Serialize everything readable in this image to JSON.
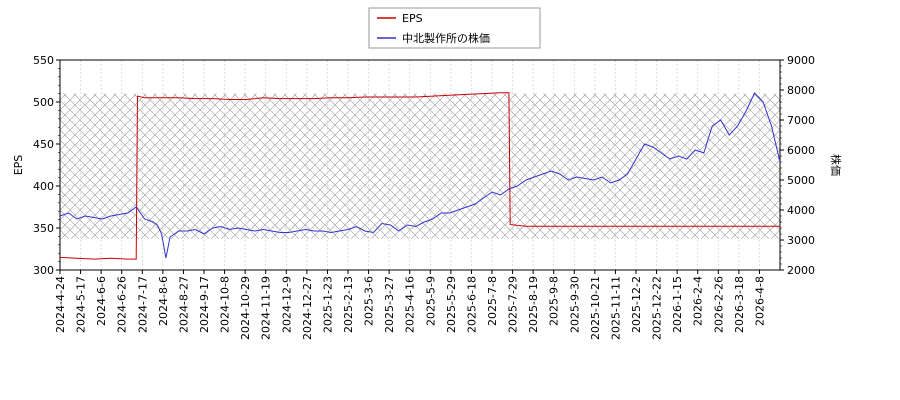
{
  "chart_data": {
    "type": "line",
    "legend": {
      "placement": "top-center",
      "entries": [
        {
          "name": "EPS",
          "color": "#cc0000"
        },
        {
          "name": "中北製作所の株価",
          "color": "#3333cc"
        }
      ]
    },
    "x_ticks": [
      "2024-4-24",
      "2024-5-17",
      "2024-6-6",
      "2024-6-26",
      "2024-7-17",
      "2024-8-6",
      "2024-8-27",
      "2024-9-17",
      "2024-10-8",
      "2024-10-29",
      "2024-11-19",
      "2024-12-9",
      "2024-12-27",
      "2025-1-23",
      "2025-2-13",
      "2025-3-6",
      "2025-3-27",
      "2025-4-16",
      "2025-5-9",
      "2025-5-29",
      "2025-6-18",
      "2025-7-8",
      "2025-7-29",
      "2025-8-19",
      "2025-9-8",
      "2025-9-30",
      "2025-10-21",
      "2025-11-11",
      "2025-12-2",
      "2025-12-22",
      "2026-1-15",
      "2026-2-4",
      "2026-2-26",
      "2026-3-18",
      "2026-4-8"
    ],
    "y_left": {
      "label": "EPS",
      "range": [
        300,
        550
      ],
      "ticks": [
        300,
        350,
        400,
        450,
        500,
        550
      ]
    },
    "y_right": {
      "label": "株価",
      "range": [
        2000,
        9000
      ],
      "ticks": [
        2000,
        3000,
        4000,
        5000,
        6000,
        7000,
        8000,
        9000
      ]
    },
    "series": [
      {
        "name": "EPS",
        "axis": "left",
        "color": "#cc0000",
        "points": [
          [
            0,
            315
          ],
          [
            4,
            314
          ],
          [
            8,
            313
          ],
          [
            12,
            314
          ],
          [
            16,
            313
          ],
          [
            18,
            313
          ],
          [
            18.3,
            507
          ],
          [
            20,
            505
          ],
          [
            24,
            505
          ],
          [
            28,
            505
          ],
          [
            32,
            504
          ],
          [
            36,
            504
          ],
          [
            40,
            503
          ],
          [
            44,
            503
          ],
          [
            48,
            505
          ],
          [
            52,
            504
          ],
          [
            56,
            504
          ],
          [
            60,
            504
          ],
          [
            64,
            505
          ],
          [
            68,
            505
          ],
          [
            72,
            506
          ],
          [
            76,
            506
          ],
          [
            80,
            506
          ],
          [
            84,
            506
          ],
          [
            88,
            507
          ],
          [
            92,
            508
          ],
          [
            96,
            509
          ],
          [
            100,
            510
          ],
          [
            104,
            511
          ],
          [
            106,
            511
          ],
          [
            106.3,
            354
          ],
          [
            110,
            352
          ],
          [
            114,
            352
          ],
          [
            118,
            352
          ],
          [
            122,
            352
          ],
          [
            126,
            352
          ],
          [
            130,
            352
          ],
          [
            134,
            352
          ],
          [
            138,
            352
          ],
          [
            142,
            352
          ],
          [
            146,
            352
          ],
          [
            150,
            352
          ],
          [
            154,
            352
          ],
          [
            158,
            352
          ],
          [
            162,
            352
          ],
          [
            166,
            352
          ],
          [
            170,
            352
          ]
        ]
      },
      {
        "name": "中北製作所の株価",
        "axis": "right",
        "color": "#3333cc",
        "points": [
          [
            0,
            3800
          ],
          [
            2,
            3900
          ],
          [
            4,
            3700
          ],
          [
            6,
            3800
          ],
          [
            8,
            3750
          ],
          [
            10,
            3700
          ],
          [
            12,
            3800
          ],
          [
            14,
            3850
          ],
          [
            16,
            3900
          ],
          [
            18,
            4100
          ],
          [
            19,
            3900
          ],
          [
            20,
            3700
          ],
          [
            22,
            3600
          ],
          [
            23,
            3500
          ],
          [
            24,
            3200
          ],
          [
            25,
            2400
          ],
          [
            26,
            3100
          ],
          [
            27,
            3200
          ],
          [
            28,
            3300
          ],
          [
            30,
            3300
          ],
          [
            32,
            3350
          ],
          [
            34,
            3200
          ],
          [
            36,
            3400
          ],
          [
            38,
            3450
          ],
          [
            40,
            3350
          ],
          [
            42,
            3400
          ],
          [
            44,
            3350
          ],
          [
            46,
            3300
          ],
          [
            48,
            3350
          ],
          [
            50,
            3300
          ],
          [
            52,
            3250
          ],
          [
            54,
            3250
          ],
          [
            56,
            3300
          ],
          [
            58,
            3350
          ],
          [
            60,
            3300
          ],
          [
            62,
            3300
          ],
          [
            64,
            3250
          ],
          [
            66,
            3300
          ],
          [
            68,
            3350
          ],
          [
            70,
            3450
          ],
          [
            72,
            3300
          ],
          [
            74,
            3250
          ],
          [
            76,
            3550
          ],
          [
            78,
            3500
          ],
          [
            80,
            3300
          ],
          [
            82,
            3500
          ],
          [
            84,
            3450
          ],
          [
            86,
            3600
          ],
          [
            88,
            3700
          ],
          [
            90,
            3900
          ],
          [
            92,
            3900
          ],
          [
            94,
            4000
          ],
          [
            96,
            4100
          ],
          [
            98,
            4200
          ],
          [
            100,
            4400
          ],
          [
            102,
            4600
          ],
          [
            104,
            4500
          ],
          [
            106,
            4700
          ],
          [
            108,
            4800
          ],
          [
            110,
            5000
          ],
          [
            112,
            5100
          ],
          [
            114,
            5200
          ],
          [
            116,
            5300
          ],
          [
            118,
            5200
          ],
          [
            120,
            5000
          ],
          [
            122,
            5100
          ],
          [
            124,
            5050
          ],
          [
            126,
            5000
          ],
          [
            128,
            5100
          ],
          [
            130,
            4900
          ],
          [
            132,
            5000
          ],
          [
            134,
            5200
          ],
          [
            136,
            5700
          ],
          [
            138,
            6200
          ],
          [
            140,
            6100
          ],
          [
            142,
            5900
          ],
          [
            144,
            5700
          ],
          [
            146,
            5800
          ],
          [
            148,
            5700
          ],
          [
            150,
            6000
          ],
          [
            152,
            5900
          ],
          [
            154,
            6800
          ],
          [
            156,
            7000
          ],
          [
            158,
            6500
          ],
          [
            160,
            6800
          ],
          [
            162,
            7300
          ],
          [
            164,
            7900
          ],
          [
            166,
            7600
          ],
          [
            168,
            6800
          ],
          [
            170,
            5600
          ]
        ]
      }
    ],
    "x_count": 170,
    "grid": true,
    "hatched_bands": true
  }
}
